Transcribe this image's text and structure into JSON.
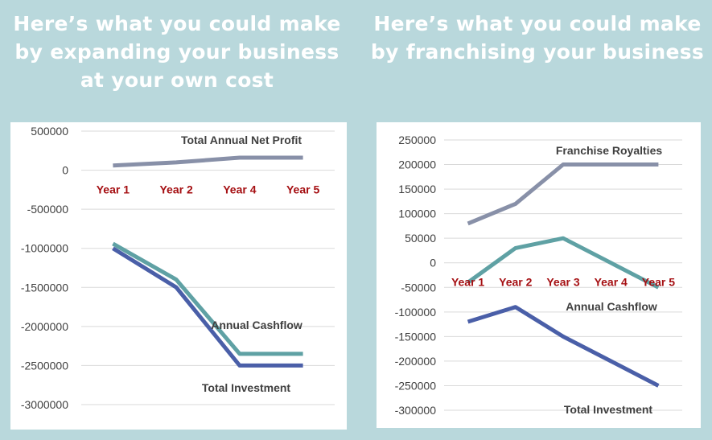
{
  "headline_left": "Here’s what you could make by expanding your business at your own cost",
  "headline_right": "Here’s what you could make by franchising your business",
  "chart_data": [
    {
      "type": "line",
      "categories": [
        "Year 1",
        "Year 2",
        "Year 4",
        "Year 5"
      ],
      "ylim": [
        -3000000,
        500000
      ],
      "yticks": [
        500000,
        0,
        -500000,
        -1000000,
        -1500000,
        -2000000,
        -2500000,
        -3000000
      ],
      "grid": true,
      "series": [
        {
          "name": "Total Annual Net Profit",
          "color": "#8890a8",
          "values": [
            60000,
            100000,
            160000,
            160000
          ]
        },
        {
          "name": "Annual Cashflow",
          "color": "#5fa1a4",
          "values": [
            -940000,
            -1400000,
            -2350000,
            -2350000
          ]
        },
        {
          "name": "Total Investment",
          "color": "#4a5fa8",
          "values": [
            -1000000,
            -1500000,
            -2500000,
            -2500000
          ]
        }
      ]
    },
    {
      "type": "line",
      "categories": [
        "Year 1",
        "Year 2",
        "Year 3",
        "Year 4",
        "Year 5"
      ],
      "ylim": [
        -300000,
        250000
      ],
      "yticks": [
        250000,
        200000,
        150000,
        100000,
        50000,
        0,
        -50000,
        -100000,
        -150000,
        -200000,
        -250000,
        -300000
      ],
      "grid": true,
      "series": [
        {
          "name": "Franchise Royalties",
          "color": "#8890a8",
          "values": [
            80000,
            120000,
            200000,
            200000,
            200000
          ]
        },
        {
          "name": "Annual Cashflow",
          "color": "#5fa1a4",
          "values": [
            -40000,
            30000,
            50000,
            0,
            -50000
          ]
        },
        {
          "name": "Total Investment",
          "color": "#4a5fa8",
          "values": [
            -120000,
            -90000,
            -150000,
            -200000,
            -250000
          ]
        }
      ]
    }
  ]
}
